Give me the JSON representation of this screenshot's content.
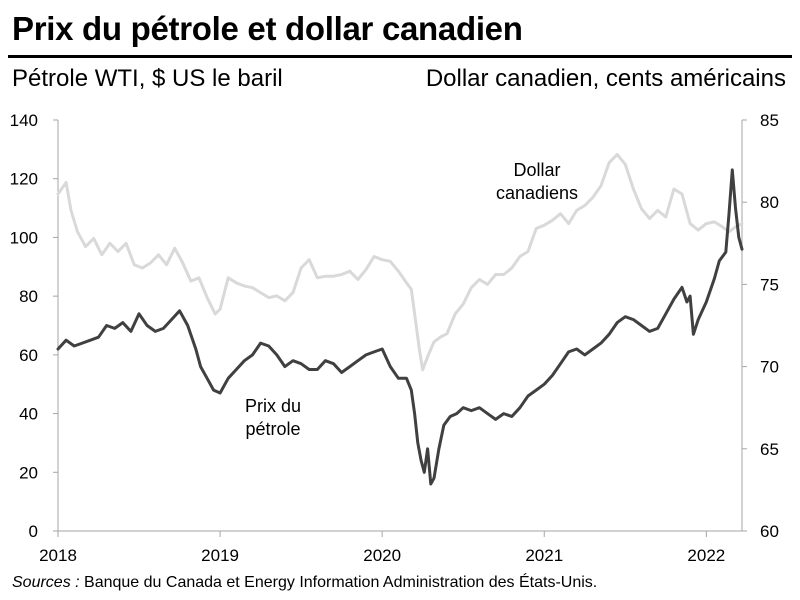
{
  "chart_data": {
    "type": "line",
    "title": "Prix du pétrole et dollar canadien",
    "ylabel_left": "Pétrole WTI, $ US le baril",
    "ylabel_right": "Dollar canadien, cents américains",
    "x_ticks": [
      "2018",
      "2019",
      "2020",
      "2021",
      "2022"
    ],
    "y_left_ticks": [
      0,
      20,
      40,
      60,
      80,
      100,
      120,
      140
    ],
    "y_right_ticks": [
      60,
      65,
      70,
      75,
      80,
      85
    ],
    "xlim": [
      2018.0,
      2022.22
    ],
    "ylim_left": [
      0,
      140
    ],
    "ylim_right": [
      60,
      85
    ],
    "grid": false,
    "series": [
      {
        "name": "Prix du pétrole",
        "axis": "left",
        "color": "#404040",
        "x": [
          2018.0,
          2018.05,
          2018.1,
          2018.15,
          2018.2,
          2018.25,
          2018.3,
          2018.35,
          2018.4,
          2018.45,
          2018.5,
          2018.55,
          2018.6,
          2018.65,
          2018.7,
          2018.75,
          2018.8,
          2018.85,
          2018.88,
          2018.92,
          2018.96,
          2019.0,
          2019.05,
          2019.1,
          2019.15,
          2019.2,
          2019.25,
          2019.3,
          2019.35,
          2019.4,
          2019.45,
          2019.5,
          2019.55,
          2019.6,
          2019.65,
          2019.7,
          2019.75,
          2019.8,
          2019.85,
          2019.9,
          2019.95,
          2020.0,
          2020.05,
          2020.1,
          2020.15,
          2020.18,
          2020.2,
          2020.22,
          2020.24,
          2020.26,
          2020.28,
          2020.3,
          2020.32,
          2020.35,
          2020.38,
          2020.42,
          2020.46,
          2020.5,
          2020.55,
          2020.6,
          2020.65,
          2020.7,
          2020.75,
          2020.8,
          2020.85,
          2020.9,
          2020.95,
          2021.0,
          2021.05,
          2021.1,
          2021.15,
          2021.2,
          2021.25,
          2021.3,
          2021.35,
          2021.4,
          2021.45,
          2021.5,
          2021.55,
          2021.6,
          2021.65,
          2021.7,
          2021.75,
          2021.8,
          2021.85,
          2021.88,
          2021.9,
          2021.92,
          2021.95,
          2022.0,
          2022.05,
          2022.08,
          2022.12,
          2022.14,
          2022.16,
          2022.18,
          2022.2,
          2022.22
        ],
        "y": [
          62,
          65,
          63,
          64,
          65,
          66,
          70,
          69,
          71,
          68,
          74,
          70,
          68,
          69,
          72,
          75,
          70,
          62,
          56,
          52,
          48,
          47,
          52,
          55,
          58,
          60,
          64,
          63,
          60,
          56,
          58,
          57,
          55,
          55,
          58,
          57,
          54,
          56,
          58,
          60,
          61,
          62,
          56,
          52,
          52,
          48,
          40,
          30,
          24,
          20,
          28,
          16,
          18,
          28,
          36,
          39,
          40,
          42,
          41,
          42,
          40,
          38,
          40,
          39,
          42,
          46,
          48,
          50,
          53,
          57,
          61,
          62,
          60,
          62,
          64,
          67,
          71,
          73,
          72,
          70,
          68,
          69,
          74,
          79,
          83,
          78,
          80,
          67,
          72,
          78,
          86,
          92,
          95,
          108,
          123,
          110,
          100,
          96
        ]
      },
      {
        "name": "Dollar canadiens",
        "axis": "right",
        "color": "#d9d9d9",
        "x": [
          2018.0,
          2018.05,
          2018.08,
          2018.12,
          2018.17,
          2018.22,
          2018.27,
          2018.32,
          2018.37,
          2018.42,
          2018.47,
          2018.52,
          2018.57,
          2018.62,
          2018.67,
          2018.72,
          2018.77,
          2018.82,
          2018.87,
          2018.92,
          2018.97,
          2019.0,
          2019.05,
          2019.1,
          2019.15,
          2019.2,
          2019.25,
          2019.3,
          2019.35,
          2019.4,
          2019.45,
          2019.5,
          2019.55,
          2019.6,
          2019.65,
          2019.7,
          2019.75,
          2019.8,
          2019.85,
          2019.9,
          2019.95,
          2020.0,
          2020.05,
          2020.1,
          2020.15,
          2020.18,
          2020.21,
          2020.23,
          2020.25,
          2020.28,
          2020.32,
          2020.36,
          2020.4,
          2020.45,
          2020.5,
          2020.55,
          2020.6,
          2020.65,
          2020.7,
          2020.75,
          2020.8,
          2020.85,
          2020.9,
          2020.95,
          2021.0,
          2021.05,
          2021.1,
          2021.15,
          2021.2,
          2021.25,
          2021.3,
          2021.35,
          2021.4,
          2021.45,
          2021.5,
          2021.55,
          2021.6,
          2021.65,
          2021.7,
          2021.75,
          2021.8,
          2021.85,
          2021.9,
          2021.95,
          2022.0,
          2022.05,
          2022.1,
          2022.14,
          2022.18,
          2022.22
        ],
        "y": [
          80.5,
          81.2,
          79.5,
          78.2,
          77.3,
          77.8,
          76.8,
          77.5,
          77.0,
          77.5,
          76.2,
          76.0,
          76.3,
          76.8,
          76.2,
          77.2,
          76.3,
          75.2,
          75.4,
          74.2,
          73.2,
          73.5,
          75.4,
          75.1,
          74.9,
          74.8,
          74.5,
          74.2,
          74.3,
          74.0,
          74.5,
          76.0,
          76.5,
          75.4,
          75.5,
          75.5,
          75.6,
          75.8,
          75.3,
          75.9,
          76.7,
          76.5,
          76.4,
          75.8,
          75.1,
          74.7,
          72.5,
          71.0,
          69.8,
          70.6,
          71.5,
          71.8,
          72.0,
          73.2,
          73.8,
          74.8,
          75.3,
          75.0,
          75.6,
          75.6,
          76.0,
          76.7,
          77.0,
          78.4,
          78.6,
          78.9,
          79.3,
          78.7,
          79.5,
          79.8,
          80.3,
          81.0,
          82.4,
          82.9,
          82.3,
          80.8,
          79.6,
          79.0,
          79.5,
          79.1,
          80.8,
          80.5,
          78.7,
          78.3,
          78.7,
          78.8,
          78.5,
          78.2,
          78.5,
          78.7
        ]
      }
    ],
    "annotations": [
      {
        "text_lines": [
          "Dollar",
          "canadiens"
        ]
      },
      {
        "text_lines": [
          "Prix du",
          "pétrole"
        ]
      }
    ]
  },
  "title": "Prix du pétrole et dollar canadien",
  "left_axis_title": "Pétrole WTI, $ US le baril",
  "right_axis_title": "Dollar canadien, cents américains",
  "source_prefix": "Sources :",
  "source_text": " Banque du Canada et Energy Information Administration des États-Unis."
}
